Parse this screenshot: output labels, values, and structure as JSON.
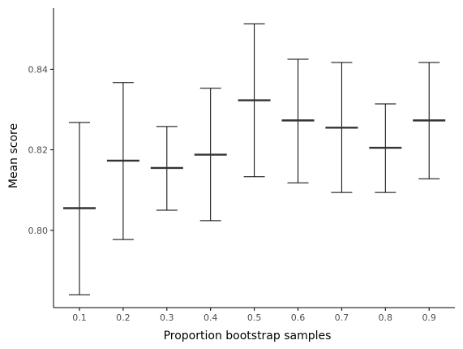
{
  "chart_data": {
    "type": "errorbar",
    "title": "",
    "xlabel": "Proportion bootstrap samples",
    "ylabel": "Mean score",
    "categories": [
      "0.1",
      "0.2",
      "0.3",
      "0.4",
      "0.5",
      "0.6",
      "0.7",
      "0.8",
      "0.9"
    ],
    "series": [
      {
        "mean": [
          0.8055,
          0.8173,
          0.8155,
          0.8188,
          0.8323,
          0.8273,
          0.8255,
          0.8205,
          0.8273
        ],
        "lower": [
          0.784,
          0.7977,
          0.805,
          0.8024,
          0.8133,
          0.8118,
          0.8094,
          0.8094,
          0.8128
        ],
        "upper": [
          0.8268,
          0.8367,
          0.8258,
          0.8353,
          0.8513,
          0.8425,
          0.8417,
          0.8314,
          0.8417
        ]
      }
    ],
    "y_ticks": [
      "0.80",
      "0.82",
      "0.84"
    ],
    "ylim": [
      0.7808,
      0.8552
    ],
    "grid": false,
    "legend": "none",
    "colors": {
      "errorbar": "#000000",
      "mean": "#333333",
      "axis": "#000000",
      "tick_label": "#4d4d4d"
    }
  }
}
